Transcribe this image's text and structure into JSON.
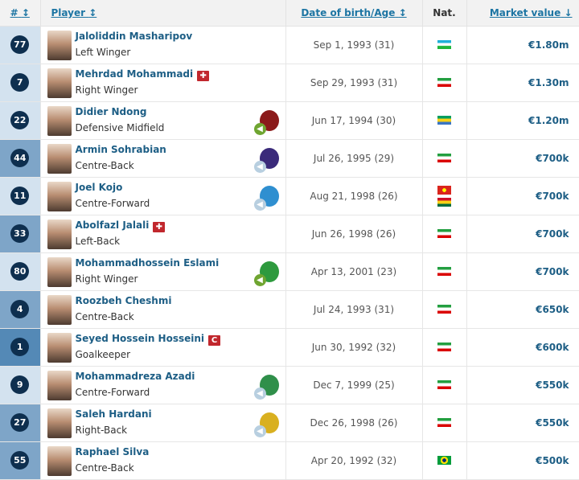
{
  "header": {
    "number": "#",
    "player": "Player",
    "dob": "Date of birth/Age",
    "nat": "Nat.",
    "market_value": "Market value",
    "sort_icon": "↕",
    "sort_desc_icon": "↓"
  },
  "colors": {
    "attack_mid": "#d3e2ef",
    "defender": "#7ea5c8",
    "goalkeeper": "#5489b6",
    "link": "#1d5e85"
  },
  "players": [
    {
      "number": "77",
      "name": "Jaloliddin Masharipov",
      "position": "Left Winger",
      "dob": "Sep 1, 1993 (31)",
      "nat": [
        "uzbekistan"
      ],
      "value": "€1.80m",
      "group": "a"
    },
    {
      "number": "7",
      "name": "Mehrdad Mohammadi",
      "position": "Right Winger",
      "dob": "Sep 29, 1993 (31)",
      "nat": [
        "iran"
      ],
      "value": "€1.30m",
      "group": "a",
      "badge": "injury"
    },
    {
      "number": "22",
      "name": "Didier Ndong",
      "position": "Defensive Midfield",
      "dob": "Jun 17, 1994 (30)",
      "nat": [
        "gabon"
      ],
      "value": "€1.20m",
      "group": "a",
      "loan": "green",
      "crest": "#8b1a1a"
    },
    {
      "number": "44",
      "name": "Armin Sohrabian",
      "position": "Centre-Back",
      "dob": "Jul 26, 1995 (29)",
      "nat": [
        "iran"
      ],
      "value": "€700k",
      "group": "d",
      "loan": "grey",
      "crest": "#3a2a7a"
    },
    {
      "number": "11",
      "name": "Joel Kojo",
      "position": "Centre-Forward",
      "dob": "Aug 21, 1998 (26)",
      "nat": [
        "vietnam",
        "ghana"
      ],
      "value": "€700k",
      "group": "a",
      "loan": "grey",
      "crest": "#2f8fd0"
    },
    {
      "number": "33",
      "name": "Abolfazl Jalali",
      "position": "Left-Back",
      "dob": "Jun 26, 1998 (26)",
      "nat": [
        "iran"
      ],
      "value": "€700k",
      "group": "d",
      "badge": "injury"
    },
    {
      "number": "80",
      "name": "Mohammadhossein Eslami",
      "position": "Right Winger",
      "dob": "Apr 13, 2001 (23)",
      "nat": [
        "iran"
      ],
      "value": "€700k",
      "group": "a",
      "loan": "green",
      "crest": "#2e9a3e"
    },
    {
      "number": "4",
      "name": "Roozbeh Cheshmi",
      "position": "Centre-Back",
      "dob": "Jul 24, 1993 (31)",
      "nat": [
        "iran"
      ],
      "value": "€650k",
      "group": "d"
    },
    {
      "number": "1",
      "name": "Seyed Hossein Hosseini",
      "position": "Goalkeeper",
      "dob": "Jun 30, 1992 (32)",
      "nat": [
        "iran"
      ],
      "value": "€600k",
      "group": "g",
      "badge": "captain",
      "badge_text": "C"
    },
    {
      "number": "9",
      "name": "Mohammadreza Azadi",
      "position": "Centre-Forward",
      "dob": "Dec 7, 1999 (25)",
      "nat": [
        "iran"
      ],
      "value": "€550k",
      "group": "a",
      "loan": "grey",
      "crest": "#2f8f4a"
    },
    {
      "number": "27",
      "name": "Saleh Hardani",
      "position": "Right-Back",
      "dob": "Dec 26, 1998 (26)",
      "nat": [
        "iran"
      ],
      "value": "€550k",
      "group": "d",
      "loan": "grey",
      "crest": "#d9b020"
    },
    {
      "number": "55",
      "name": "Raphael Silva",
      "position": "Centre-Back",
      "dob": "Apr 20, 1992 (32)",
      "nat": [
        "brazil"
      ],
      "value": "€500k",
      "group": "d"
    }
  ]
}
